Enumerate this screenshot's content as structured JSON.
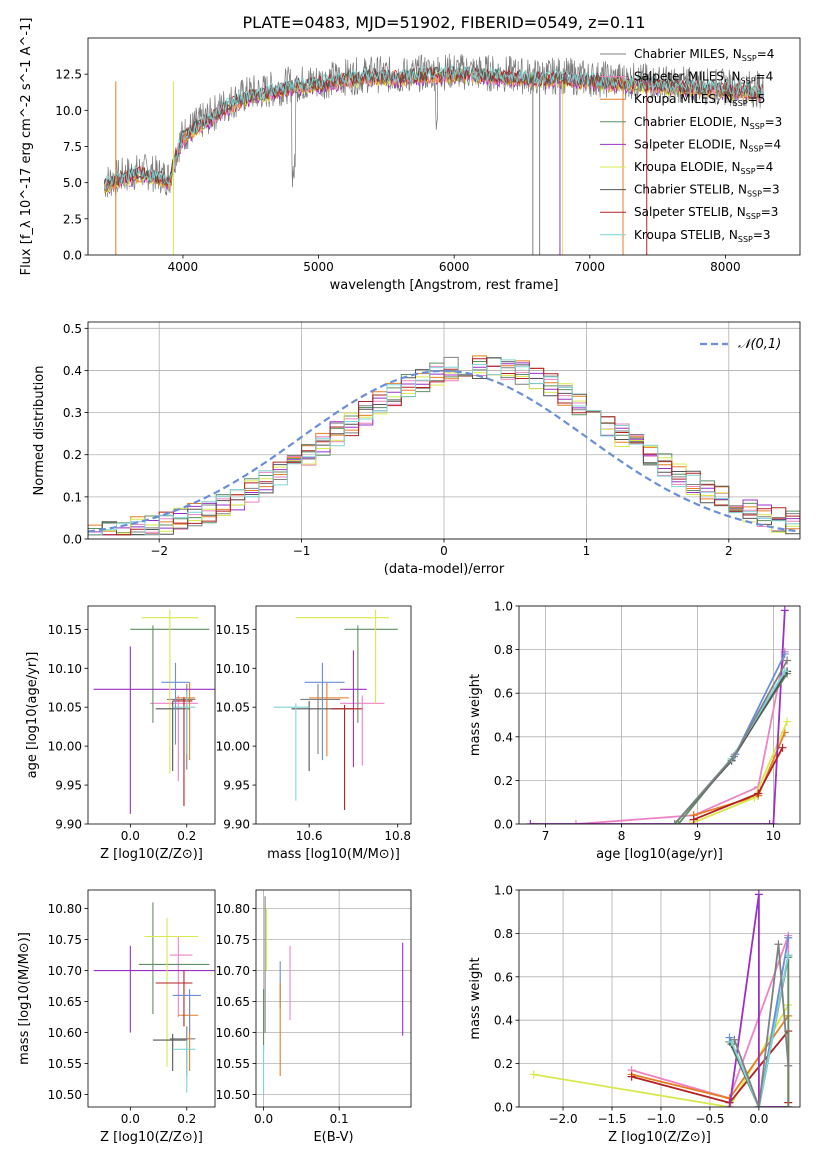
{
  "figure": {
    "title": "PLATE=0483, MJD=51902, FIBERID=0549, z=0.11"
  },
  "models": [
    {
      "name": "Chabrier MILES",
      "nssp": "4",
      "color": "#808080"
    },
    {
      "name": "Salpeter MILES",
      "nssp": "4",
      "color": "#ee82c4"
    },
    {
      "name": "Kroupa MILES",
      "nssp": "5",
      "color": "#e67e22"
    },
    {
      "name": "Chabrier ELODIE",
      "nssp": "3",
      "color": "#5f8f63"
    },
    {
      "name": "Salpeter ELODIE",
      "nssp": "4",
      "color": "#9b30c8"
    },
    {
      "name": "Kroupa ELODIE",
      "nssp": "4",
      "color": "#d9e84e"
    },
    {
      "name": "Chabrier STELIB",
      "nssp": "3",
      "color": "#555555"
    },
    {
      "name": "Salpeter STELIB",
      "nssp": "3",
      "color": "#b22222"
    },
    {
      "name": "Kroupa STELIB",
      "nssp": "3",
      "color": "#7fd4d4"
    }
  ],
  "extra_colors": {
    "blue": "#6a8fd8"
  },
  "chart_data": [
    {
      "id": "spectrum",
      "type": "line",
      "xlabel": "wavelength [Angstrom, rest frame]",
      "ylabel": "Flux [f_λ 10^-17 erg cm^-2 s^-1 A^-1]",
      "xlim": [
        3300,
        8550
      ],
      "ylim": [
        0,
        15
      ],
      "xticks": [
        4000,
        5000,
        6000,
        7000,
        8000
      ],
      "yticks": [
        0.0,
        2.5,
        5.0,
        7.5,
        10.0,
        12.5
      ],
      "continuum": {
        "x": [
          3420,
          3500,
          3600,
          3700,
          3800,
          3900,
          3950,
          4000,
          4100,
          4200,
          4300,
          4400,
          4500,
          4600,
          4800,
          5000,
          5200,
          5400,
          5600,
          5800,
          6000,
          6200,
          6400,
          6600,
          6800,
          7000,
          7200,
          7400,
          7600,
          7800,
          8000,
          8200,
          8280
        ],
        "y": [
          5.0,
          5.3,
          5.6,
          5.8,
          5.6,
          5.3,
          7.2,
          8.3,
          9.0,
          9.6,
          10.3,
          10.8,
          11.2,
          11.3,
          11.8,
          12.0,
          12.3,
          12.5,
          12.4,
          12.6,
          12.7,
          12.6,
          12.5,
          12.3,
          12.4,
          12.2,
          12.1,
          12.0,
          11.8,
          11.7,
          11.6,
          11.5,
          11.4
        ]
      },
      "dropouts": [
        {
          "x": 3505,
          "color": "#e67e22"
        },
        {
          "x": 3930,
          "color": "#d9e84e"
        },
        {
          "x": 6580,
          "color": "#808080"
        },
        {
          "x": 6630,
          "color": "#808080"
        },
        {
          "x": 6780,
          "color": "#9b30c8"
        },
        {
          "x": 6800,
          "color": "#d9e84e"
        },
        {
          "x": 7245,
          "color": "#e67e22"
        },
        {
          "x": 7420,
          "color": "#b22222"
        }
      ],
      "legend_position": "right"
    },
    {
      "id": "residuals",
      "type": "histogram",
      "xlabel": "(data-model)/error",
      "ylabel": "Normed distribution",
      "xlim": [
        -2.5,
        2.5
      ],
      "ylim": [
        0,
        0.515
      ],
      "xticks": [
        -2,
        -1,
        0,
        1,
        2
      ],
      "yticks": [
        0.0,
        0.1,
        0.2,
        0.3,
        0.4,
        0.5
      ],
      "bin_width": 0.1,
      "legend_label": "𝒩(0,1)",
      "legend_position": "top-right",
      "grid": true
    },
    {
      "id": "age_vs_Z",
      "type": "scatter",
      "xlabel": "Z [log10(Z/Z⊙)]",
      "ylabel": "age [log10(age/yr)]",
      "xlim": [
        -0.15,
        0.3
      ],
      "ylim": [
        9.9,
        10.18
      ],
      "xticks": [
        0.0,
        0.2
      ],
      "yticks": [
        9.9,
        9.95,
        10.0,
        10.05,
        10.1,
        10.15
      ],
      "points": [
        {
          "color": "#808080",
          "x": 0.2,
          "y": 10.06,
          "xerr": [
            0.07,
            0.03
          ],
          "yerr": [
            0.09,
            0.02
          ]
        },
        {
          "color": "#ee82c4",
          "x": 0.17,
          "y": 10.055,
          "xerr": [
            0.1,
            0.07
          ],
          "yerr": [
            0.1,
            0.01
          ]
        },
        {
          "color": "#e67e22",
          "x": 0.21,
          "y": 10.062,
          "xerr": [
            0.05,
            0.02
          ],
          "yerr": [
            0.08,
            0.02
          ]
        },
        {
          "color": "#5f8f63",
          "x": 0.08,
          "y": 10.15,
          "xerr": [
            0.08,
            0.2
          ],
          "yerr": [
            0.12,
            0.005
          ]
        },
        {
          "color": "#9b30c8",
          "x": 0.0,
          "y": 10.073,
          "xerr": [
            0.13,
            0.3
          ],
          "yerr": [
            0.16,
            0.055
          ]
        },
        {
          "color": "#d9e84e",
          "x": 0.14,
          "y": 10.165,
          "xerr": [
            0.1,
            0.1
          ],
          "yerr": [
            0.2,
            0.01
          ]
        },
        {
          "color": "#555555",
          "x": 0.15,
          "y": 10.048,
          "xerr": [
            0.06,
            0.06
          ],
          "yerr": [
            0.08,
            0.01
          ]
        },
        {
          "color": "#b22222",
          "x": 0.19,
          "y": 10.058,
          "xerr": [
            0.04,
            0.03
          ],
          "yerr": [
            0.135,
            0.005
          ]
        },
        {
          "color": "#7fd4d4",
          "x": 0.2,
          "y": 10.05,
          "xerr": [
            0.05,
            0.03
          ],
          "yerr": [
            0.06,
            0.02
          ]
        },
        {
          "color": "#6a8fd8",
          "x": 0.16,
          "y": 10.082,
          "xerr": [
            0.05,
            0.05
          ],
          "yerr": [
            0.08,
            0.025
          ]
        }
      ]
    },
    {
      "id": "age_vs_mass",
      "type": "scatter",
      "xlabel": "mass [log10(M/M⊙)]",
      "ylabel": "",
      "xlim": [
        10.48,
        10.83
      ],
      "ylim": [
        9.9,
        10.18
      ],
      "xticks": [
        10.6,
        10.8
      ],
      "yticks": [
        9.9,
        9.95,
        10.0,
        10.05,
        10.1,
        10.15
      ],
      "points": [
        {
          "color": "#808080",
          "x": 10.62,
          "y": 10.06,
          "xerr": [
            0.04,
            0.05
          ],
          "yerr": [
            0.07,
            0.02
          ]
        },
        {
          "color": "#ee82c4",
          "x": 10.72,
          "y": 10.055,
          "xerr": [
            0.05,
            0.05
          ],
          "yerr": [
            0.08,
            0.01
          ]
        },
        {
          "color": "#e67e22",
          "x": 10.64,
          "y": 10.062,
          "xerr": [
            0.04,
            0.05
          ],
          "yerr": [
            0.075,
            0.02
          ]
        },
        {
          "color": "#5f8f63",
          "x": 10.71,
          "y": 10.15,
          "xerr": [
            0.03,
            0.09
          ],
          "yerr": [
            0.12,
            0.005
          ]
        },
        {
          "color": "#9b30c8",
          "x": 10.7,
          "y": 10.073,
          "xerr": [
            0.03,
            0.03
          ],
          "yerr": [
            0.1,
            0.05
          ]
        },
        {
          "color": "#d9e84e",
          "x": 10.75,
          "y": 10.165,
          "xerr": [
            0.18,
            0.03
          ],
          "yerr": [
            0.11,
            0.01
          ]
        },
        {
          "color": "#555555",
          "x": 10.6,
          "y": 10.048,
          "xerr": [
            0.04,
            0.1
          ],
          "yerr": [
            0.08,
            0.01
          ]
        },
        {
          "color": "#b22222",
          "x": 10.68,
          "y": 10.048,
          "xerr": [
            0.03,
            0.04
          ],
          "yerr": [
            0.13,
            0.005
          ]
        },
        {
          "color": "#7fd4d4",
          "x": 10.57,
          "y": 10.05,
          "xerr": [
            0.05,
            0.03
          ],
          "yerr": [
            0.12,
            0.005
          ]
        },
        {
          "color": "#6a8fd8",
          "x": 10.63,
          "y": 10.082,
          "xerr": [
            0.04,
            0.05
          ],
          "yerr": [
            0.1,
            0.025
          ]
        }
      ]
    },
    {
      "id": "weight_vs_age",
      "type": "line",
      "xlabel": "age [log10(age/yr)]",
      "ylabel": "mass weight",
      "xlim": [
        6.65,
        10.35
      ],
      "ylim": [
        0,
        1.0
      ],
      "xticks": [
        7,
        8,
        9,
        10
      ],
      "yticks": [
        0.0,
        0.2,
        0.4,
        0.6,
        0.8,
        1.0
      ],
      "grid": true,
      "series": [
        {
          "color": "#ee82c4",
          "x": [
            7.4,
            8.95,
            9.8,
            10.15
          ],
          "y": [
            0.0,
            0.04,
            0.17,
            0.79
          ]
        },
        {
          "color": "#e67e22",
          "x": [
            8.95,
            9.8,
            10.15
          ],
          "y": [
            0.04,
            0.13,
            0.42
          ]
        },
        {
          "color": "#d9e84e",
          "x": [
            8.9,
            9.75,
            10.18
          ],
          "y": [
            0.0,
            0.12,
            0.47
          ]
        },
        {
          "color": "#9b30c8",
          "x": [
            6.8,
            9.95,
            10.0,
            10.15
          ],
          "y": [
            0.0,
            0.0,
            0.0,
            0.98
          ]
        },
        {
          "color": "#5f8f63",
          "x": [
            8.75,
            9.45,
            10.18
          ],
          "y": [
            0.0,
            0.3,
            0.69
          ]
        },
        {
          "color": "#555555",
          "x": [
            8.7,
            9.45,
            10.18
          ],
          "y": [
            0.0,
            0.29,
            0.7
          ]
        },
        {
          "color": "#6a8fd8",
          "x": [
            8.7,
            9.5,
            10.15
          ],
          "y": [
            0.0,
            0.32,
            0.78
          ]
        },
        {
          "color": "#7fd4d4",
          "x": [
            8.7,
            9.45,
            10.15
          ],
          "y": [
            0.0,
            0.3,
            0.7
          ]
        },
        {
          "color": "#808080",
          "x": [
            8.7,
            9.48,
            10.18
          ],
          "y": [
            0.0,
            0.31,
            0.75
          ]
        },
        {
          "color": "#b22222",
          "x": [
            8.95,
            9.8,
            10.12
          ],
          "y": [
            0.02,
            0.14,
            0.35
          ]
        }
      ]
    },
    {
      "id": "mass_vs_Z",
      "type": "scatter",
      "xlabel": "Z [log10(Z/Z⊙)]",
      "ylabel": "mass [log10(M/M⊙)]",
      "xlim": [
        -0.15,
        0.3
      ],
      "ylim": [
        10.48,
        10.83
      ],
      "xticks": [
        0.0,
        0.2
      ],
      "yticks": [
        10.5,
        10.55,
        10.6,
        10.65,
        10.7,
        10.75,
        10.8
      ],
      "points": [
        {
          "color": "#808080",
          "x": 0.2,
          "y": 10.59,
          "xerr": [
            0.06,
            0.03
          ],
          "yerr": [
            0.06,
            0.02
          ]
        },
        {
          "color": "#ee82c4",
          "x": 0.17,
          "y": 10.725,
          "xerr": [
            0.03,
            0.05
          ],
          "yerr": [
            0.1,
            0.03
          ]
        },
        {
          "color": "#e67e22",
          "x": 0.21,
          "y": 10.628,
          "xerr": [
            0.04,
            0.03
          ],
          "yerr": [
            0.09,
            0.03
          ]
        },
        {
          "color": "#5f8f63",
          "x": 0.08,
          "y": 10.71,
          "xerr": [
            0.05,
            0.2
          ],
          "yerr": [
            0.08,
            0.1
          ]
        },
        {
          "color": "#9b30c8",
          "x": 0.0,
          "y": 10.7,
          "xerr": [
            0.13,
            0.3
          ],
          "yerr": [
            0.1,
            0.04
          ]
        },
        {
          "color": "#d9e84e",
          "x": 0.13,
          "y": 10.755,
          "xerr": [
            0.08,
            0.11
          ],
          "yerr": [
            0.21,
            0.03
          ]
        },
        {
          "color": "#555555",
          "x": 0.15,
          "y": 10.588,
          "xerr": [
            0.07,
            0.05
          ],
          "yerr": [
            0.05,
            0.01
          ]
        },
        {
          "color": "#b22222",
          "x": 0.19,
          "y": 10.68,
          "xerr": [
            0.1,
            0.03
          ],
          "yerr": [
            0.07,
            0.02
          ]
        },
        {
          "color": "#7fd4d4",
          "x": 0.2,
          "y": 10.573,
          "xerr": [
            0.05,
            0.03
          ],
          "yerr": [
            0.07,
            0.015
          ]
        },
        {
          "color": "#6a8fd8",
          "x": 0.21,
          "y": 10.66,
          "xerr": [
            0.06,
            0.04
          ],
          "yerr": [
            0.06,
            0.01
          ]
        }
      ]
    },
    {
      "id": "mass_vs_ebv",
      "type": "scatter",
      "xlabel": "E(B-V)",
      "ylabel": "",
      "xlim": [
        -0.01,
        0.195
      ],
      "ylim": [
        10.48,
        10.83
      ],
      "xticks": [
        0.0,
        0.1
      ],
      "yticks": [
        10.5,
        10.55,
        10.6,
        10.65,
        10.7,
        10.75,
        10.8
      ],
      "grid": true,
      "points": [
        {
          "color": "#808080",
          "x": 0.002,
          "y": 10.7,
          "xerr": [
            0,
            0
          ],
          "yerr": [
            0.1,
            0.12
          ]
        },
        {
          "color": "#d9e84e",
          "x": 0.004,
          "y": 10.75,
          "xerr": [
            0,
            0
          ],
          "yerr": [
            0.05,
            0.05
          ]
        },
        {
          "color": "#5f8f63",
          "x": 0.0,
          "y": 10.62,
          "xerr": [
            0,
            0
          ],
          "yerr": [
            0.05,
            0.05
          ]
        },
        {
          "color": "#7fd4d4",
          "x": 0.0,
          "y": 10.55,
          "xerr": [
            0,
            0
          ],
          "yerr": [
            0.05,
            0.03
          ]
        },
        {
          "color": "#6a8fd8",
          "x": 0.022,
          "y": 10.68,
          "xerr": [
            0,
            0
          ],
          "yerr": [
            0.04,
            0.035
          ]
        },
        {
          "color": "#e67e22",
          "x": 0.022,
          "y": 10.61,
          "xerr": [
            0,
            0
          ],
          "yerr": [
            0.08,
            0.07
          ]
        },
        {
          "color": "#ee82c4",
          "x": 0.035,
          "y": 10.68,
          "xerr": [
            0,
            0
          ],
          "yerr": [
            0.06,
            0.06
          ]
        },
        {
          "color": "#9b30c8",
          "x": 0.184,
          "y": 10.67,
          "xerr": [
            0,
            0
          ],
          "yerr": [
            0.075,
            0.075
          ]
        }
      ]
    },
    {
      "id": "weight_vs_Z",
      "type": "line",
      "xlabel": "Z [log10(Z/Z⊙)]",
      "ylabel": "mass weight",
      "xlim": [
        -2.45,
        0.42
      ],
      "ylim": [
        0,
        1.0
      ],
      "xticks": [
        -2.0,
        -1.5,
        -1.0,
        -0.5,
        0.0
      ],
      "yticks": [
        0.0,
        0.2,
        0.4,
        0.6,
        0.8,
        1.0
      ],
      "grid": true,
      "series": [
        {
          "color": "#d9e84e",
          "x": [
            -2.3,
            -0.3,
            0.3
          ],
          "y": [
            0.15,
            0.0,
            0.47
          ]
        },
        {
          "color": "#ee82c4",
          "x": [
            -1.3,
            -0.3,
            0.3,
            0.3
          ],
          "y": [
            0.17,
            0.04,
            0.79,
            0.0
          ]
        },
        {
          "color": "#e67e22",
          "x": [
            -1.3,
            -0.3,
            0.3
          ],
          "y": [
            0.15,
            0.04,
            0.42
          ]
        },
        {
          "color": "#b22222",
          "x": [
            -1.3,
            -0.3,
            0.3,
            0.3
          ],
          "y": [
            0.14,
            0.02,
            0.35,
            0.02
          ]
        },
        {
          "color": "#9b30c8",
          "x": [
            -0.3,
            0.0,
            0.0,
            0.3
          ],
          "y": [
            0.0,
            0.98,
            0.0,
            0.0
          ]
        },
        {
          "color": "#5f8f63",
          "x": [
            -0.3,
            0.0,
            0.3,
            0.3
          ],
          "y": [
            0.3,
            0.0,
            0.69,
            0.0
          ]
        },
        {
          "color": "#6a8fd8",
          "x": [
            -0.3,
            0.0,
            0.3
          ],
          "y": [
            0.32,
            0.0,
            0.78
          ]
        },
        {
          "color": "#555555",
          "x": [
            -0.28,
            0.0,
            0.3
          ],
          "y": [
            0.29,
            0.0,
            0.7
          ]
        },
        {
          "color": "#7fd4d4",
          "x": [
            -0.28,
            0.0,
            0.3
          ],
          "y": [
            0.3,
            0.0,
            0.7
          ]
        },
        {
          "color": "#808080",
          "x": [
            -0.25,
            0.0,
            0.2,
            0.3
          ],
          "y": [
            0.31,
            0.0,
            0.75,
            0.19
          ]
        }
      ]
    }
  ]
}
